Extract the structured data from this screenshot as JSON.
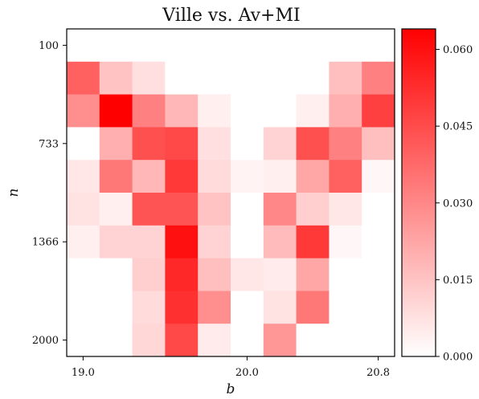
{
  "chart_data": {
    "type": "heatmap",
    "title": "Ville vs. Av+MI",
    "xlabel": "b",
    "ylabel": "n",
    "x_tick_labels": [
      "19.0",
      "20.0",
      "20.8"
    ],
    "y_tick_labels": [
      "100",
      "733",
      "1366",
      "2000"
    ],
    "colorbar": {
      "min": 0.0,
      "max": 0.064,
      "tick_labels": [
        "0.000",
        "0.015",
        "0.030",
        "0.045",
        "0.060"
      ],
      "colormap": [
        "#ffffff",
        "#ff0000"
      ]
    },
    "n_cols": 10,
    "n_rows": 10,
    "values": [
      [
        0.0,
        0.0,
        0.0,
        0.0,
        0.0,
        0.0,
        0.0,
        0.0,
        0.0,
        0.0
      ],
      [
        0.04,
        0.015,
        0.008,
        0.0,
        0.0,
        0.0,
        0.0,
        0.0,
        0.016,
        0.032
      ],
      [
        0.028,
        0.064,
        0.032,
        0.018,
        0.004,
        0.0,
        0.0,
        0.004,
        0.02,
        0.048
      ],
      [
        0.0,
        0.02,
        0.044,
        0.046,
        0.008,
        0.0,
        0.011,
        0.044,
        0.032,
        0.016
      ],
      [
        0.006,
        0.034,
        0.018,
        0.05,
        0.009,
        0.003,
        0.004,
        0.022,
        0.04,
        0.002
      ],
      [
        0.007,
        0.004,
        0.043,
        0.043,
        0.015,
        0.0,
        0.03,
        0.012,
        0.006,
        0.0
      ],
      [
        0.004,
        0.011,
        0.011,
        0.06,
        0.011,
        0.0,
        0.017,
        0.05,
        0.002,
        0.0
      ],
      [
        0.0,
        0.0,
        0.012,
        0.054,
        0.016,
        0.006,
        0.005,
        0.022,
        0.0,
        0.0
      ],
      [
        0.0,
        0.0,
        0.009,
        0.052,
        0.028,
        0.0,
        0.007,
        0.034,
        0.0,
        0.0
      ],
      [
        0.0,
        0.0,
        0.01,
        0.046,
        0.005,
        0.0,
        0.026,
        0.0,
        0.0,
        0.0
      ]
    ]
  }
}
